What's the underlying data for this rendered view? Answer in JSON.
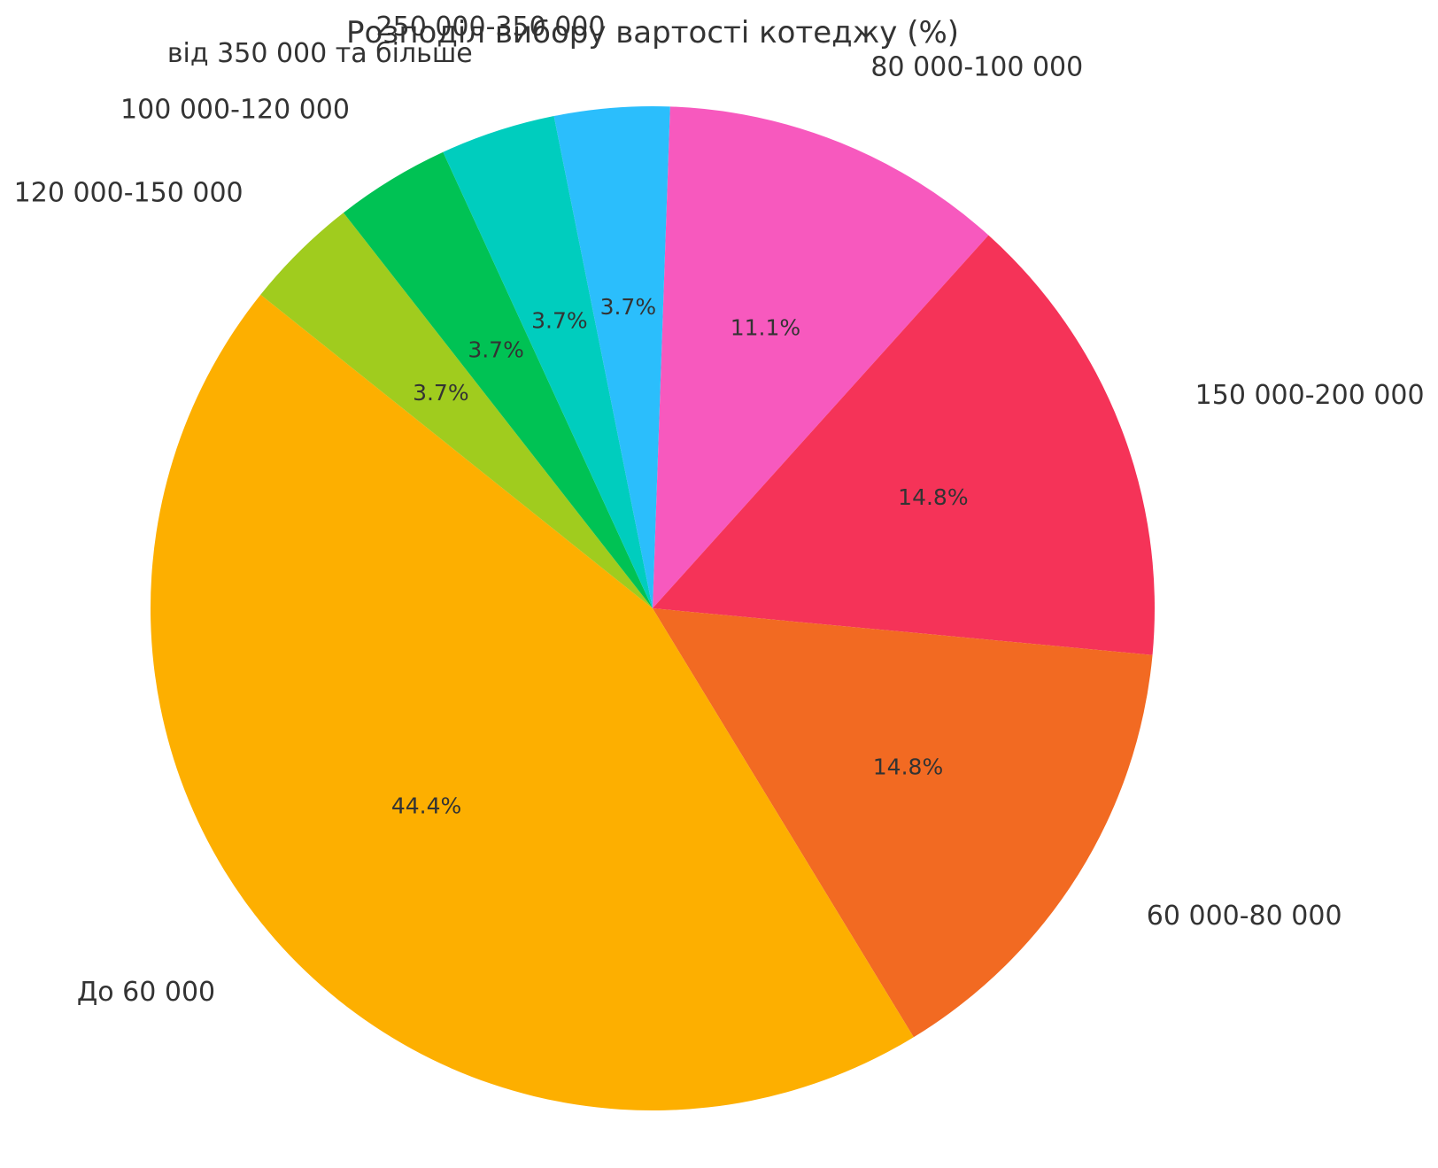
{
  "chart_data": {
    "type": "pie",
    "title": "Розподіл вибору вартості котеджу (%)",
    "start_angle_deg": 88,
    "direction": "clockwise",
    "slices": [
      {
        "label": "80 000-100 000",
        "value": 11.1,
        "pct_label": "11.1%",
        "color": "#F759BE"
      },
      {
        "label": "150 000-200 000",
        "value": 14.8,
        "pct_label": "14.8%",
        "color": "#F53358"
      },
      {
        "label": "60 000-80 000",
        "value": 14.8,
        "pct_label": "14.8%",
        "color": "#F26A22"
      },
      {
        "label": "До 60 000",
        "value": 44.4,
        "pct_label": "44.4%",
        "color": "#FDAF00"
      },
      {
        "label": "120 000-150 000",
        "value": 3.7,
        "pct_label": "3.7%",
        "color": "#A0CC1E"
      },
      {
        "label": "100 000-120 000",
        "value": 3.7,
        "pct_label": "3.7%",
        "color": "#00C254"
      },
      {
        "label": "від 350 000 та більше",
        "value": 3.7,
        "pct_label": "3.7%",
        "color": "#00CDBE"
      },
      {
        "label": "250 000-350 000",
        "value": 3.7,
        "pct_label": "3.7%",
        "color": "#2BBEFC"
      }
    ]
  }
}
